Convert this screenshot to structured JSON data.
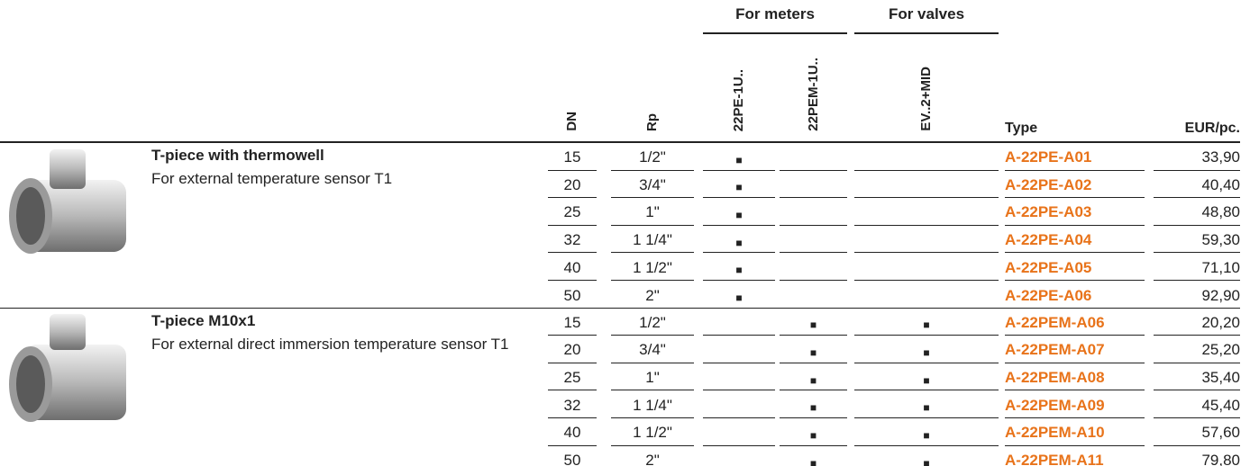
{
  "header": {
    "groups": [
      "For meters",
      "For valves"
    ],
    "columns": [
      "DN",
      "Rp",
      "22PE-1U..",
      "22PEM-1U..",
      "EV..2+MID",
      "Type",
      "EUR/pc."
    ]
  },
  "products": [
    {
      "title": "T-piece with thermowell",
      "description": "For external temperature sensor T1",
      "rows": [
        [
          "15",
          "1/2\"",
          "■",
          null,
          null,
          "A-22PE-A01",
          "33,90"
        ],
        [
          "20",
          "3/4\"",
          "■",
          null,
          null,
          "A-22PE-A02",
          "40,40"
        ],
        [
          "25",
          "1\"",
          "■",
          null,
          null,
          "A-22PE-A03",
          "48,80"
        ],
        [
          "32",
          "1 1/4\"",
          "■",
          null,
          null,
          "A-22PE-A04",
          "59,30"
        ],
        [
          "40",
          "1 1/2\"",
          "■",
          null,
          null,
          "A-22PE-A05",
          "71,10"
        ],
        [
          "50",
          "2\"",
          "■",
          null,
          null,
          "A-22PE-A06",
          "92,90"
        ]
      ]
    },
    {
      "title": "T-piece M10x1",
      "description": "For external direct immersion temperature sensor T1",
      "rows": [
        [
          "15",
          "1/2\"",
          null,
          "■",
          "■",
          "A-22PEM-A06",
          "20,20"
        ],
        [
          "20",
          "3/4\"",
          null,
          "■",
          "■",
          "A-22PEM-A07",
          "25,20"
        ],
        [
          "25",
          "1\"",
          null,
          "■",
          "■",
          "A-22PEM-A08",
          "35,40"
        ],
        [
          "32",
          "1 1/4\"",
          null,
          "■",
          "■",
          "A-22PEM-A09",
          "45,40"
        ],
        [
          "40",
          "1 1/2\"",
          null,
          "■",
          "■",
          "A-22PEM-A10",
          "57,60"
        ],
        [
          "50",
          "2\"",
          null,
          "■",
          "■",
          "A-22PEM-A11",
          "79,80"
        ]
      ]
    }
  ]
}
